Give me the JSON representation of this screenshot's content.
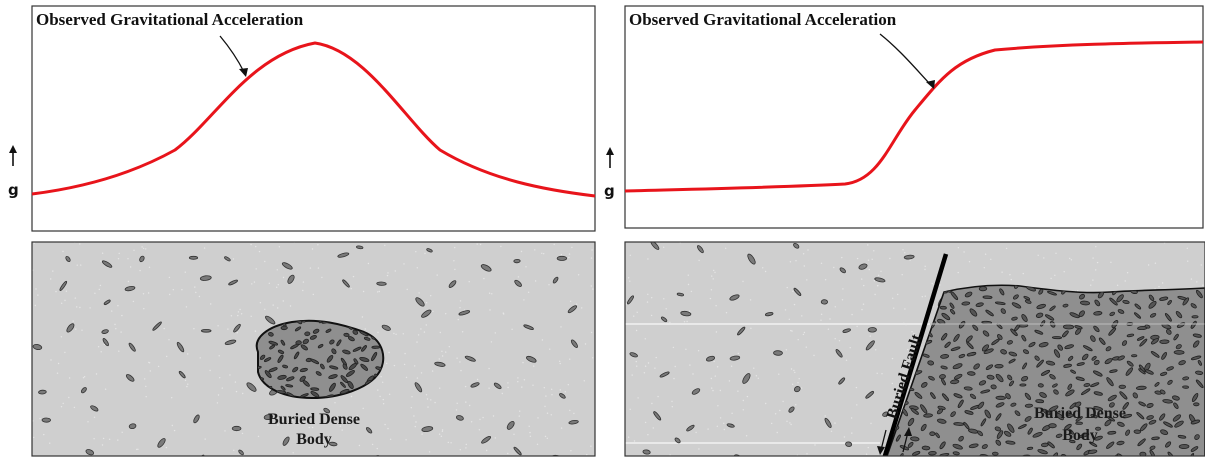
{
  "colors": {
    "curve": "#e8141b",
    "background_rock": "#cfcfcf",
    "dense_rock": "#8f8f8f",
    "frame": "#333333",
    "clast": "#7a7a7a"
  },
  "left_panel": {
    "graph": {
      "title": "Observed Gravitational Acceleration",
      "axis_label": "g",
      "axis_icon": "up-arrow-icon"
    },
    "section": {
      "body_label_line1": "Buried Dense",
      "body_label_line2": "Body"
    }
  },
  "right_panel": {
    "graph": {
      "title": "Observed Gravitational Acceleration",
      "axis_label": "g",
      "axis_icon": "up-arrow-icon"
    },
    "section": {
      "fault_label": "Buried Fault",
      "body_label_line1": "Buried Dense",
      "body_label_line2": "Body"
    }
  }
}
